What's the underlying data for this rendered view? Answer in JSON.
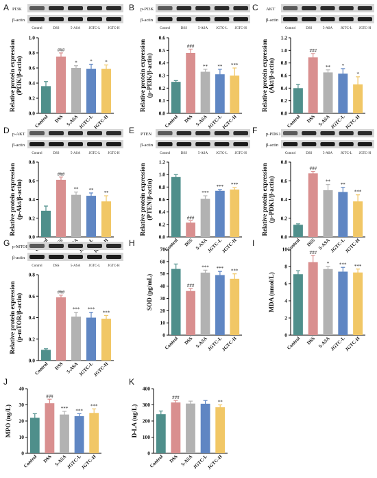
{
  "colors": [
    "#4f8f8b",
    "#d98f8f",
    "#b2b2b2",
    "#5f86c3",
    "#f1c766"
  ],
  "panels": [
    {
      "letter": "A",
      "blots": [
        "PI3K",
        "β-actin"
      ],
      "chart_data": {
        "type": "bar",
        "categories": [
          "Control",
          "DSS",
          "5-ASA",
          "JGTC-L",
          "JGTC-H"
        ],
        "values": [
          0.36,
          0.75,
          0.6,
          0.59,
          0.59
        ],
        "errors": [
          0.06,
          0.05,
          0.03,
          0.06,
          0.05
        ],
        "sig": [
          "",
          "###",
          "*",
          "*",
          "*"
        ],
        "ylabel": [
          "Relative protein expression",
          "(PI3K/β-actin)"
        ],
        "ylim": [
          0,
          1.0
        ],
        "yticks": [
          "0.0",
          "0.2",
          "0.4",
          "0.6",
          "0.8",
          "1.0"
        ]
      }
    },
    {
      "letter": "B",
      "blots": [
        "p-PI3K",
        "β-actin"
      ],
      "chart_data": {
        "type": "bar",
        "categories": [
          "Control",
          "DSS",
          "5-ASA",
          "JGTC-L",
          "JGTC-H"
        ],
        "values": [
          0.25,
          0.48,
          0.33,
          0.31,
          0.3
        ],
        "errors": [
          0.01,
          0.03,
          0.02,
          0.04,
          0.06
        ],
        "sig": [
          "",
          "###",
          "**",
          "**",
          "***"
        ],
        "ylabel": [
          "Relative protein expression",
          "(p-PI3K/β-actin)"
        ],
        "ylim": [
          0,
          0.6
        ],
        "yticks": [
          "0.0",
          "0.1",
          "0.2",
          "0.3",
          "0.4",
          "0.5",
          "0.6"
        ]
      }
    },
    {
      "letter": "C",
      "blots": [
        "AKT",
        "β-actin"
      ],
      "chart_data": {
        "type": "bar",
        "categories": [
          "Control",
          "DSS",
          "5-ASA",
          "JGTC-L",
          "JGTC-H"
        ],
        "values": [
          0.4,
          0.89,
          0.65,
          0.63,
          0.46
        ],
        "errors": [
          0.06,
          0.06,
          0.04,
          0.08,
          0.12
        ],
        "sig": [
          "",
          "###",
          "**",
          "*",
          "*"
        ],
        "ylabel": [
          "Relative protein expression",
          "(Akt/β-actin)"
        ],
        "ylim": [
          0,
          1.2
        ],
        "yticks": [
          "0.0",
          "0.2",
          "0.4",
          "0.6",
          "0.8",
          "1.0",
          "1.2"
        ]
      }
    },
    {
      "letter": "D",
      "blots": [
        "p-AKT",
        "β-actin"
      ],
      "chart_data": {
        "type": "bar",
        "categories": [
          "Control",
          "DSS",
          "5-ASA",
          "JGTC-L",
          "JGTC-H"
        ],
        "values": [
          0.28,
          0.61,
          0.45,
          0.44,
          0.38
        ],
        "errors": [
          0.05,
          0.03,
          0.03,
          0.03,
          0.06
        ],
        "sig": [
          "",
          "###",
          "**",
          "**",
          "**"
        ],
        "ylabel": [
          "Relative protein expression",
          "(p-Akt/β-actin)"
        ],
        "ylim": [
          0,
          0.8
        ],
        "yticks": [
          "0.0",
          "0.2",
          "0.4",
          "0.6",
          "0.8"
        ]
      }
    },
    {
      "letter": "E",
      "blots": [
        "PTEN",
        "β-actin"
      ],
      "chart_data": {
        "type": "bar",
        "categories": [
          "Control",
          "DSS",
          "5-ASA",
          "JGTC-L",
          "JGTC-H"
        ],
        "values": [
          0.96,
          0.23,
          0.61,
          0.74,
          0.76
        ],
        "errors": [
          0.04,
          0.03,
          0.05,
          0.02,
          0.03
        ],
        "sig": [
          "",
          "###",
          "***",
          "***",
          "***"
        ],
        "ylabel": [
          "Relative protein expression",
          "(PTEN/β-actin)"
        ],
        "ylim": [
          0,
          1.2
        ],
        "yticks": [
          "0.0",
          "0.2",
          "0.4",
          "0.6",
          "0.8",
          "1.0",
          "1.2"
        ]
      }
    },
    {
      "letter": "F",
      "blots": [
        "p-PDK1",
        "β-actin"
      ],
      "chart_data": {
        "type": "bar",
        "categories": [
          "Control",
          "DSS",
          "5-ASA",
          "JGTC-L",
          "JGTC-H"
        ],
        "values": [
          0.13,
          0.68,
          0.5,
          0.48,
          0.38
        ],
        "errors": [
          0.01,
          0.02,
          0.06,
          0.05,
          0.07
        ],
        "sig": [
          "",
          "###",
          "**",
          "**",
          "***"
        ],
        "ylabel": [
          "Relative protein expression",
          "(p-PDK1/β-actin)"
        ],
        "ylim": [
          0,
          0.8
        ],
        "yticks": [
          "0.0",
          "0.2",
          "0.4",
          "0.6",
          "0.8"
        ]
      }
    },
    {
      "letter": "G",
      "blots": [
        "p-MTOR",
        "β-actin"
      ],
      "chart_data": {
        "type": "bar",
        "categories": [
          "Control",
          "DSS",
          "5-ASA",
          "JGTC-L",
          "JGTC-H"
        ],
        "values": [
          0.1,
          0.59,
          0.41,
          0.4,
          0.39
        ],
        "errors": [
          0.01,
          0.02,
          0.04,
          0.05,
          0.03
        ],
        "sig": [
          "",
          "###",
          "***",
          "***",
          "***"
        ],
        "ylabel": [
          "Relative protein expression",
          "(p-mTOR/β-actin)"
        ],
        "ylim": [
          0,
          0.8
        ],
        "yticks": [
          "0.0",
          "0.2",
          "0.4",
          "0.6",
          "0.8"
        ]
      }
    },
    {
      "letter": "H",
      "blots": [],
      "chart_data": {
        "type": "bar",
        "categories": [
          "Control",
          "DSS",
          "5-ASA",
          "JGTC-L",
          "JGTC-H"
        ],
        "values": [
          54,
          36,
          51,
          49,
          46
        ],
        "errors": [
          4,
          2,
          2,
          3,
          4
        ],
        "sig": [
          "",
          "###",
          "***",
          "***",
          "***"
        ],
        "ylabel": [
          "SOD (pg/mL)"
        ],
        "ylim": [
          0,
          70
        ],
        "yticks": [
          "0",
          "10",
          "20",
          "30",
          "40",
          "50",
          "60",
          "70"
        ]
      }
    },
    {
      "letter": "I",
      "blots": [],
      "chart_data": {
        "type": "bar",
        "categories": [
          "Control",
          "DSS",
          "5-ASA",
          "JGTC-L",
          "JGTC-H"
        ],
        "values": [
          7.1,
          8.5,
          7.7,
          7.4,
          7.3
        ],
        "errors": [
          0.4,
          0.8,
          0.3,
          0.5,
          0.4
        ],
        "sig": [
          "",
          "###",
          "*",
          "***",
          "***"
        ],
        "ylabel": [
          "MDA (nmol/L)"
        ],
        "ylim": [
          0,
          10
        ],
        "yticks": [
          "0",
          "2",
          "4",
          "6",
          "8",
          "10"
        ]
      }
    },
    {
      "letter": "J",
      "blots": [],
      "chart_data": {
        "type": "bar",
        "categories": [
          "Control",
          "DSS",
          "5-ASA",
          "JGTC-L",
          "JGTC-H"
        ],
        "values": [
          22,
          31,
          24,
          23,
          25
        ],
        "errors": [
          2.5,
          2.5,
          2,
          1.5,
          2.5
        ],
        "sig": [
          "",
          "###",
          "***",
          "***",
          "***"
        ],
        "ylabel": [
          "MPO (ng/L)"
        ],
        "ylim": [
          0,
          40
        ],
        "yticks": [
          "0",
          "10",
          "20",
          "30",
          "40"
        ]
      }
    },
    {
      "letter": "K",
      "blots": [],
      "chart_data": {
        "type": "bar",
        "categories": [
          "Control",
          "DSS",
          "5-ASA",
          "JGTC-L",
          "JGTC-H"
        ],
        "values": [
          242,
          315,
          308,
          307,
          285
        ],
        "errors": [
          20,
          12,
          15,
          20,
          15
        ],
        "sig": [
          "",
          "###",
          "",
          "",
          "**"
        ],
        "ylabel": [
          "D-LA (ug/L)"
        ],
        "ylim": [
          0,
          400
        ],
        "yticks": [
          "0",
          "100",
          "200",
          "300",
          "400"
        ]
      }
    }
  ]
}
